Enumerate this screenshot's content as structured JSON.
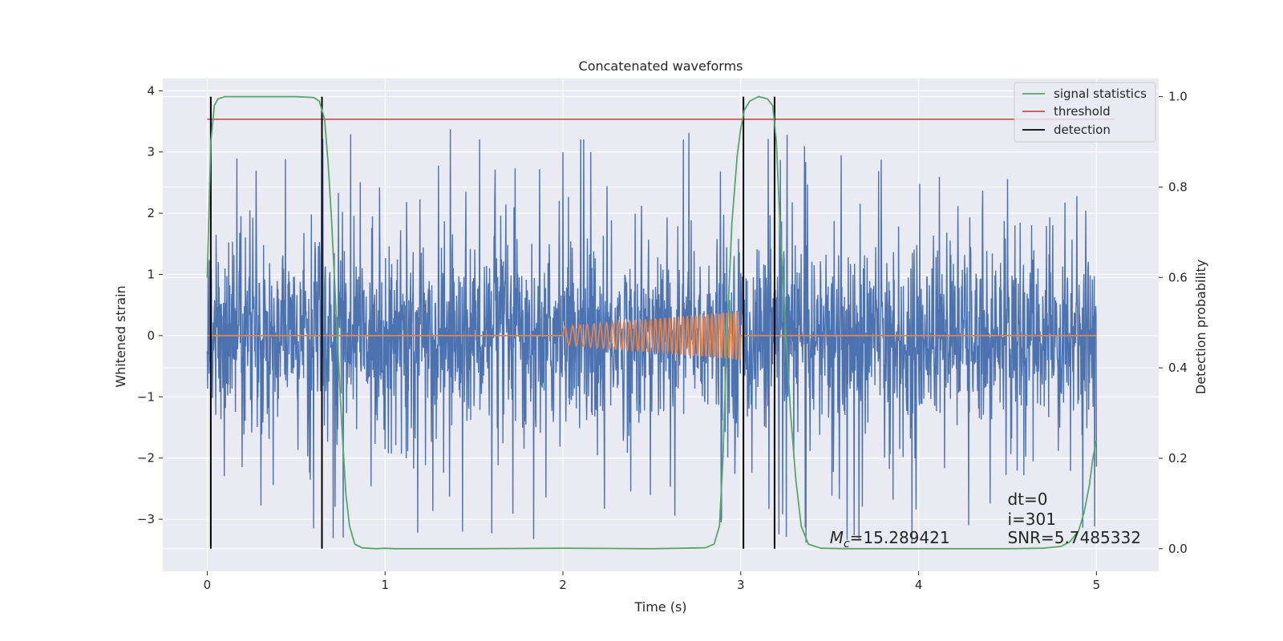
{
  "chart_data": {
    "type": "line",
    "title": "Concatenated waveforms",
    "xlabel": "Time (s)",
    "ylabel": "Whitened strain",
    "ylabel_right": "Detection probability",
    "xlim": [
      -0.25,
      5.35
    ],
    "ylim": [
      -3.85,
      4.2
    ],
    "ylim_right": [
      -0.05,
      1.04
    ],
    "x_ticks": [
      0,
      1,
      2,
      3,
      4,
      5
    ],
    "y_ticks": [
      -3,
      -2,
      -1,
      0,
      1,
      2,
      3,
      4
    ],
    "y_ticks_right": [
      0.0,
      0.2,
      0.4,
      0.6,
      0.8,
      1.0
    ],
    "grid": true,
    "legend_position": "top-right",
    "colors": {
      "strain": "#4c72b0",
      "template": "#dd8452",
      "signal_statistics": "#55a868",
      "threshold": "#c44e52",
      "detection": "#000000",
      "background": "#eaeaf2",
      "grid": "#ffffff"
    },
    "series": [
      {
        "name": "",
        "axis": "left",
        "kind": "noise",
        "x_range": [
          0,
          5
        ],
        "sigma": 0.75,
        "peak_range": [
          -3.5,
          3.85
        ]
      },
      {
        "name": "",
        "axis": "left",
        "kind": "chirp",
        "x_range": [
          0,
          5
        ],
        "chirp_start": 2.0,
        "chirp_end": 3.0,
        "amplitude_start": 0.15,
        "amplitude_end": 0.4
      },
      {
        "name": "signal statistics",
        "axis": "right",
        "points": [
          [
            0.0,
            0.6
          ],
          [
            0.01,
            0.75
          ],
          [
            0.02,
            0.9
          ],
          [
            0.04,
            0.98
          ],
          [
            0.06,
            0.995
          ],
          [
            0.1,
            1.0
          ],
          [
            0.3,
            1.0
          ],
          [
            0.5,
            1.0
          ],
          [
            0.6,
            0.998
          ],
          [
            0.63,
            0.99
          ],
          [
            0.66,
            0.95
          ],
          [
            0.68,
            0.85
          ],
          [
            0.7,
            0.72
          ],
          [
            0.72,
            0.56
          ],
          [
            0.74,
            0.4
          ],
          [
            0.76,
            0.25
          ],
          [
            0.78,
            0.12
          ],
          [
            0.8,
            0.05
          ],
          [
            0.83,
            0.01
          ],
          [
            0.87,
            0.002
          ],
          [
            0.95,
            0.0
          ],
          [
            1.0,
            0.001
          ],
          [
            1.05,
            0.0
          ],
          [
            1.5,
            0.0
          ],
          [
            2.0,
            0.001
          ],
          [
            2.5,
            0.0
          ],
          [
            2.8,
            0.002
          ],
          [
            2.85,
            0.01
          ],
          [
            2.88,
            0.05
          ],
          [
            2.9,
            0.2
          ],
          [
            2.92,
            0.45
          ],
          [
            2.95,
            0.72
          ],
          [
            2.98,
            0.87
          ],
          [
            3.0,
            0.93
          ],
          [
            3.02,
            0.97
          ],
          [
            3.05,
            0.99
          ],
          [
            3.1,
            1.0
          ],
          [
            3.15,
            0.995
          ],
          [
            3.18,
            0.98
          ],
          [
            3.2,
            0.9
          ],
          [
            3.22,
            0.72
          ],
          [
            3.25,
            0.5
          ],
          [
            3.28,
            0.3
          ],
          [
            3.31,
            0.15
          ],
          [
            3.34,
            0.05
          ],
          [
            3.38,
            0.01
          ],
          [
            3.45,
            0.001
          ],
          [
            3.6,
            0.0
          ],
          [
            4.0,
            0.0
          ],
          [
            4.5,
            0.0
          ],
          [
            4.7,
            0.001
          ],
          [
            4.8,
            0.005
          ],
          [
            4.85,
            0.015
          ],
          [
            4.9,
            0.04
          ],
          [
            4.93,
            0.08
          ],
          [
            4.96,
            0.14
          ],
          [
            4.98,
            0.2
          ],
          [
            5.0,
            0.24
          ]
        ]
      },
      {
        "name": "threshold",
        "axis": "right",
        "points": [
          [
            0,
            0.95
          ],
          [
            5.1,
            0.95
          ]
        ]
      },
      {
        "name": "detection",
        "axis": "right",
        "x": [
          0.02,
          0.645,
          3.015,
          3.19
        ],
        "y_range": [
          0.0,
          1.0
        ]
      }
    ],
    "annotations": [
      {
        "id": "mc",
        "prefix": "M",
        "subscript": "c",
        "text": "=15.289421",
        "x": 3.5,
        "y": -3.3
      },
      {
        "id": "dt",
        "text": "dt=0",
        "x": 4.5,
        "y": -2.67
      },
      {
        "id": "i",
        "text": "i=301",
        "x": 4.5,
        "y": -3.0
      },
      {
        "id": "snr",
        "text": "SNR=5.7485332",
        "x": 4.5,
        "y": -3.3
      }
    ]
  }
}
